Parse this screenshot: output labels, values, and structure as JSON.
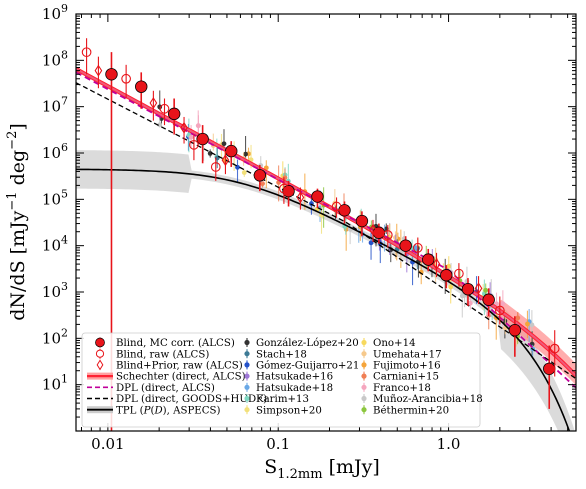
{
  "chart_data": {
    "type": "scatter",
    "xlabel_main": "S",
    "xlabel_sub": "1.2mm",
    "xlabel_unit": " [mJy]",
    "ylabel_main": "dN/dS [mJy",
    "ylabel_exp1": "−1",
    "ylabel_mid": " deg",
    "ylabel_exp2": "−2",
    "ylabel_end": "]",
    "x_scale": "log",
    "y_scale": "log",
    "xlim": [
      0.0065,
      5.6
    ],
    "ylim": [
      1,
      1000000000
    ],
    "x_ticks": [
      {
        "value": 0.01,
        "label": "0.01"
      },
      {
        "value": 0.1,
        "label": "0.1"
      },
      {
        "value": 1.0,
        "label": "1.0"
      }
    ],
    "y_ticks": [
      {
        "value": 10,
        "base": "10",
        "exp": "1"
      },
      {
        "value": 100,
        "base": "10",
        "exp": "2"
      },
      {
        "value": 1000,
        "base": "10",
        "exp": "3"
      },
      {
        "value": 10000,
        "base": "10",
        "exp": "4"
      },
      {
        "value": 100000,
        "base": "10",
        "exp": "5"
      },
      {
        "value": 1000000,
        "base": "10",
        "exp": "6"
      },
      {
        "value": 10000000,
        "base": "10",
        "exp": "7"
      },
      {
        "value": 100000000,
        "base": "10",
        "exp": "8"
      },
      {
        "value": 1000000000,
        "base": "10",
        "exp": "9"
      }
    ],
    "grid": false,
    "legend_placement": "bottom-left",
    "series": [
      {
        "name": "Blind, MC corr. (ALCS)",
        "marker": "filled-circle",
        "color": "#e8141a",
        "points": [
          {
            "x": 0.0105,
            "y": 50000000,
            "ylo": 1.0,
            "yhi": 150000000
          },
          {
            "x": 0.0157,
            "y": 27000000,
            "ylo": 9000000,
            "yhi": 55000000
          },
          {
            "x": 0.0245,
            "y": 7000000,
            "ylo": 2500000,
            "yhi": 15000000
          },
          {
            "x": 0.036,
            "y": 2000000,
            "ylo": 600000,
            "yhi": 4000000
          },
          {
            "x": 0.053,
            "y": 1100000,
            "ylo": 500000,
            "yhi": 1800000
          },
          {
            "x": 0.078,
            "y": 330000,
            "ylo": 150000,
            "yhi": 550000
          },
          {
            "x": 0.115,
            "y": 150000,
            "ylo": 70000,
            "yhi": 250000
          },
          {
            "x": 0.17,
            "y": 115000,
            "ylo": 65000,
            "yhi": 170000
          },
          {
            "x": 0.245,
            "y": 58000,
            "ylo": 30000,
            "yhi": 90000
          },
          {
            "x": 0.31,
            "y": 34000,
            "ylo": 16000,
            "yhi": 55000
          },
          {
            "x": 0.39,
            "y": 19000,
            "ylo": 11000,
            "yhi": 30000
          },
          {
            "x": 0.56,
            "y": 10000,
            "ylo": 6000,
            "yhi": 16000
          },
          {
            "x": 0.76,
            "y": 5000,
            "ylo": 2800,
            "yhi": 8500
          },
          {
            "x": 0.97,
            "y": 2300,
            "ylo": 1200,
            "yhi": 3800
          },
          {
            "x": 1.3,
            "y": 1150,
            "ylo": 500,
            "yhi": 2000
          },
          {
            "x": 1.72,
            "y": 680,
            "ylo": 300,
            "yhi": 1200
          },
          {
            "x": 2.45,
            "y": 150,
            "ylo": 40,
            "yhi": 300
          },
          {
            "x": 3.9,
            "y": 22,
            "ylo": 3,
            "yhi": 70
          }
        ]
      },
      {
        "name": "Blind, raw (ALCS)",
        "marker": "open-circle",
        "color": "#e8141a",
        "points": [
          {
            "x": 0.0075,
            "y": 150000000,
            "ylo": 50000000,
            "yhi": 300000000
          },
          {
            "x": 0.0128,
            "y": 40000000,
            "ylo": 15000000,
            "yhi": 80000000
          },
          {
            "x": 0.0215,
            "y": 9000000,
            "ylo": 4000000,
            "yhi": 15000000
          },
          {
            "x": 0.032,
            "y": 1500000,
            "ylo": 700000,
            "yhi": 2500000
          },
          {
            "x": 0.043,
            "y": 500000,
            "ylo": 250000,
            "yhi": 800000
          },
          {
            "x": 0.108,
            "y": 170000,
            "ylo": 80000,
            "yhi": 300000
          },
          {
            "x": 0.22,
            "y": 70000,
            "ylo": 40000,
            "yhi": 110000
          },
          {
            "x": 0.44,
            "y": 17000,
            "ylo": 9000,
            "yhi": 28000
          },
          {
            "x": 0.66,
            "y": 9000,
            "ylo": 5000,
            "yhi": 15000
          },
          {
            "x": 1.15,
            "y": 2500,
            "ylo": 1300,
            "yhi": 4200
          },
          {
            "x": 2.0,
            "y": 400,
            "ylo": 200,
            "yhi": 800
          },
          {
            "x": 4.2,
            "y": 60,
            "ylo": 15,
            "yhi": 150
          }
        ]
      },
      {
        "name": "Blind+Prior, raw (ALCS)",
        "marker": "open-diamond",
        "color": "#e8141a",
        "points": [
          {
            "x": 0.0088,
            "y": 60000000,
            "ylo": 25000000,
            "yhi": 120000000
          },
          {
            "x": 0.0185,
            "y": 12000000,
            "ylo": 5000000,
            "yhi": 22000000
          },
          {
            "x": 0.028,
            "y": 3500000,
            "ylo": 1600000,
            "yhi": 6000000
          },
          {
            "x": 0.049,
            "y": 700000,
            "ylo": 350000,
            "yhi": 1100000
          },
          {
            "x": 0.135,
            "y": 110000,
            "ylo": 60000,
            "yhi": 180000
          },
          {
            "x": 0.36,
            "y": 22000,
            "ylo": 12000,
            "yhi": 36000
          },
          {
            "x": 0.85,
            "y": 4000,
            "ylo": 2100,
            "yhi": 7000
          },
          {
            "x": 1.5,
            "y": 1200,
            "ylo": 550,
            "yhi": 2200
          }
        ]
      }
    ],
    "models": [
      {
        "name": "Schechter (direct, ALCS)",
        "style": "band",
        "color": "#f05a7a",
        "band_color": "#ff8a8a"
      },
      {
        "name": "DPL (direct, ALCS)",
        "style": "dashed",
        "color": "#c0009a"
      },
      {
        "name": "DPL (direct, GOODS+HUDF)",
        "style": "dashed",
        "color": "#000000"
      },
      {
        "name": "TPL (P(D), ASPECS)",
        "name_prefix": "TPL (",
        "name_italic": "P",
        "name_mid": "(",
        "name_italic2": "D",
        "name_suffix": "), ASPECS)",
        "style": "solid-band",
        "color": "#000000",
        "band_color": "#c8c8c8"
      }
    ],
    "literature": [
      {
        "name": "González-López+20",
        "color": "#333333"
      },
      {
        "name": "Stach+18",
        "color": "#3d7a95"
      },
      {
        "name": "Gómez-Guijarro+21",
        "color": "#2452c9"
      },
      {
        "name": "Hatsukade+16",
        "color": "#9e78d6"
      },
      {
        "name": "Hatsukade+18",
        "color": "#6aa8e6"
      },
      {
        "name": "Karim+13",
        "color": "#7fd8c2"
      },
      {
        "name": "Simpson+20",
        "color": "#f2e07a"
      },
      {
        "name": "Ono+14",
        "color": "#f7d95e"
      },
      {
        "name": "Umehata+17",
        "color": "#f6c98c"
      },
      {
        "name": "Fujimoto+16",
        "color": "#f5a43a"
      },
      {
        "name": "Carniani+15",
        "color": "#f07f55"
      },
      {
        "name": "Franco+18",
        "color": "#f5a6be"
      },
      {
        "name": "Muñoz-Arancibia+18",
        "color": "#c8c8c8"
      },
      {
        "name": "Béthermin+20",
        "color": "#8cc63f"
      }
    ]
  }
}
